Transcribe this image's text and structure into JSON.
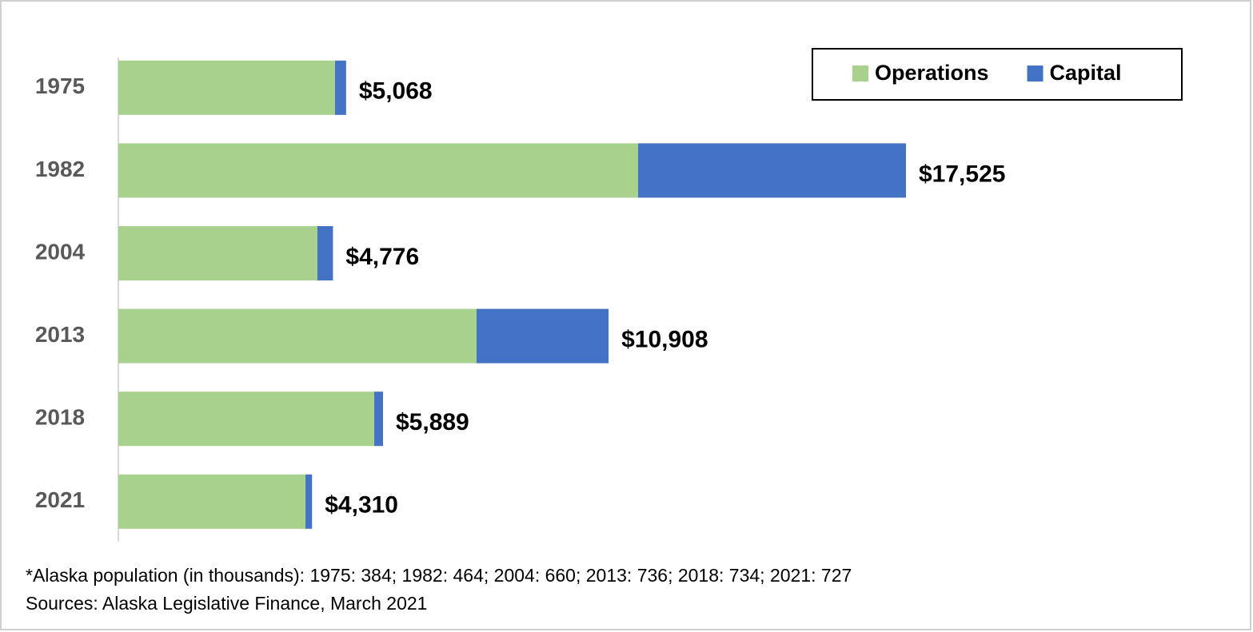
{
  "chart_data": {
    "type": "bar",
    "orientation": "horizontal",
    "stacked": true,
    "categories": [
      "1975",
      "1982",
      "2004",
      "2013",
      "2018",
      "2021"
    ],
    "series": [
      {
        "name": "Operations",
        "color": "#a9d18e",
        "values": [
          4822,
          11565,
          4430,
          7971,
          5694,
          4164
        ]
      },
      {
        "name": "Capital",
        "color": "#4472c4",
        "values": [
          246,
          5960,
          346,
          2937,
          195,
          146
        ]
      }
    ],
    "totals": {
      "values": [
        5068,
        17525,
        4776,
        10908,
        5889,
        4310
      ],
      "value_labels": [
        "$5,068",
        "$17,525",
        "$4,776",
        "$10,908",
        "$5,889",
        "$4,310"
      ]
    },
    "legend": "top-right",
    "footnotes": [
      "*Alaska population (in thousands): 1975: 384; 1982: 464; 2004: 660; 2013: 736; 2018: 734; 2021: 727",
      "Sources: Alaska Legislative Finance, March 2021"
    ]
  }
}
